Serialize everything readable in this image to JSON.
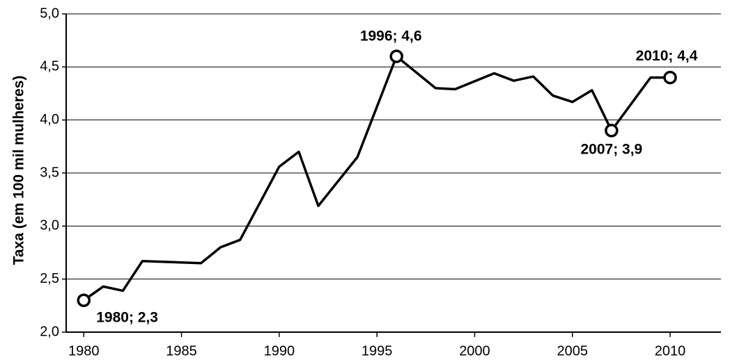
{
  "chart_data": {
    "type": "line",
    "y_label": "Taxa (em 100 mil mulheres)",
    "x": [
      1980,
      1981,
      1982,
      1983,
      1986,
      1987,
      1988,
      1990,
      1991,
      1992,
      1994,
      1996,
      1998,
      1999,
      2001,
      2002,
      2003,
      2004,
      2005,
      2006,
      2007,
      2009,
      2010
    ],
    "series": [
      {
        "color": "#000000",
        "values": [
          2.3,
          2.43,
          2.39,
          2.67,
          2.65,
          2.8,
          2.87,
          3.56,
          3.7,
          3.19,
          3.65,
          4.6,
          4.3,
          4.29,
          4.44,
          4.37,
          4.41,
          4.23,
          4.17,
          4.28,
          3.9,
          4.4,
          4.4
        ]
      }
    ],
    "annotations": [
      {
        "x": 1980,
        "y": 2.3,
        "label": "1980; 2,3"
      },
      {
        "x": 1996,
        "y": 4.6,
        "label": "1996; 4,6"
      },
      {
        "x": 2007,
        "y": 3.9,
        "label": "2007; 3,9"
      },
      {
        "x": 2010,
        "y": 4.4,
        "label": "2010; 4,4"
      }
    ],
    "xlim": [
      1979.1,
      2012.6
    ],
    "xticks": [
      1980,
      1985,
      1990,
      1995,
      2000,
      2005,
      2010
    ],
    "ylim": [
      2.0,
      5.0
    ],
    "yticks": [
      {
        "value": 2.0,
        "label": "2,0"
      },
      {
        "value": 2.5,
        "label": "2,5"
      },
      {
        "value": 3.0,
        "label": "3,0"
      },
      {
        "value": 3.5,
        "label": "3,5"
      },
      {
        "value": 4.0,
        "label": "4,0"
      },
      {
        "value": 4.5,
        "label": "4,5"
      },
      {
        "value": 5.0,
        "label": "5,0"
      }
    ],
    "grid": true
  }
}
